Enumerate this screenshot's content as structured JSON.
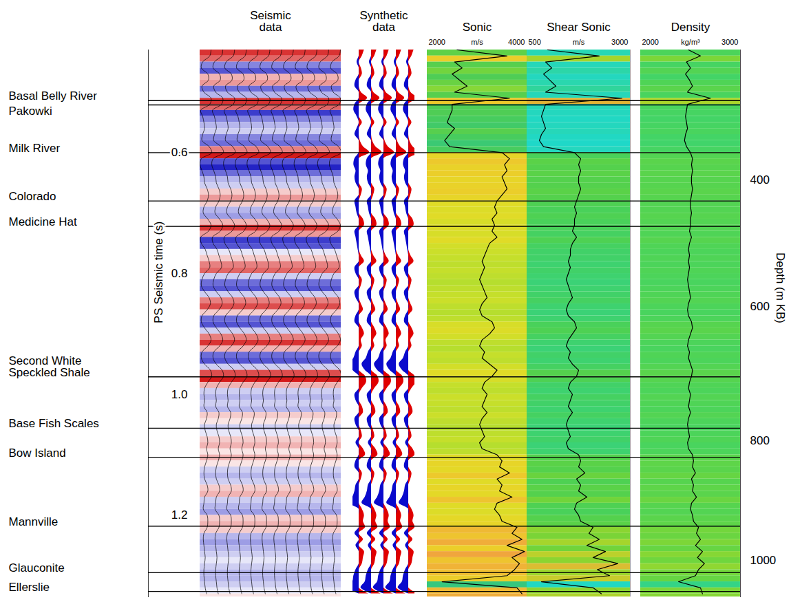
{
  "chart_data": {
    "type": "well_tie",
    "y_label": "PS Seismic time (s)",
    "ylim": [
      0.43,
      1.335
    ],
    "yticks": [
      0.6,
      0.8,
      {
        "value": 1.0,
        "label": "1.0"
      },
      1.2
    ],
    "depth_label": "Depth (m KB)",
    "depth_ticks": [
      400,
      600,
      800,
      1000
    ],
    "depth_tick_times": [
      0.645,
      0.855,
      1.077,
      1.275
    ],
    "horizons": [
      {
        "name": "Basal Belly River",
        "time": 0.514
      },
      {
        "name": "Pakowki",
        "time": 0.521
      },
      {
        "name": "Milk River",
        "time": 0.6
      },
      {
        "name": "Colorado",
        "time": 0.68
      },
      {
        "name": "Medicine Hat",
        "time": 0.722
      },
      {
        "name": "Second White Speckled Shale",
        "time": 0.971
      },
      {
        "name": "Base Fish Scales",
        "time": 1.056
      },
      {
        "name": "Bow Island",
        "time": 1.104
      },
      {
        "name": "Mannville",
        "time": 1.218
      },
      {
        "name": "Glauconite",
        "time": 1.295
      },
      {
        "name": "Ellerslie",
        "time": 1.326
      }
    ],
    "time": [
      0.43,
      0.44,
      0.45,
      0.46,
      0.47,
      0.48,
      0.49,
      0.5,
      0.51,
      0.52,
      0.53,
      0.54,
      0.55,
      0.56,
      0.57,
      0.58,
      0.59,
      0.6,
      0.61,
      0.62,
      0.63,
      0.64,
      0.65,
      0.66,
      0.67,
      0.68,
      0.69,
      0.7,
      0.71,
      0.72,
      0.73,
      0.74,
      0.75,
      0.76,
      0.77,
      0.78,
      0.79,
      0.8,
      0.81,
      0.82,
      0.83,
      0.84,
      0.85,
      0.86,
      0.87,
      0.88,
      0.89,
      0.9,
      0.91,
      0.92,
      0.93,
      0.94,
      0.95,
      0.96,
      0.97,
      0.98,
      0.99,
      1.0,
      1.01,
      1.02,
      1.03,
      1.04,
      1.05,
      1.06,
      1.07,
      1.08,
      1.09,
      1.1,
      1.11,
      1.12,
      1.13,
      1.14,
      1.15,
      1.16,
      1.17,
      1.18,
      1.19,
      1.2,
      1.21,
      1.22,
      1.23,
      1.24,
      1.25,
      1.26,
      1.27,
      1.28,
      1.29,
      1.3,
      1.31,
      1.32,
      1.33
    ],
    "panels": [
      {
        "title": "Seismic data",
        "type": "seismic",
        "amplitude_range": [
          -1,
          1
        ],
        "values": [
          0.8,
          0.6,
          -0.5,
          -0.7,
          0.3,
          0.4,
          -0.6,
          -0.3,
          0.8,
          0.6,
          -0.8,
          -0.5,
          -0.3,
          -0.2,
          -0.5,
          -0.6,
          0.5,
          0.9,
          -0.7,
          -0.9,
          -0.6,
          -0.3,
          -0.2,
          0.2,
          0.4,
          0.2,
          -0.3,
          -0.4,
          0.3,
          0.8,
          0.4,
          -0.8,
          -0.7,
          -0.1,
          0.2,
          0.5,
          0.6,
          -0.2,
          -0.6,
          -0.7,
          -0.2,
          0.5,
          0.7,
          0.2,
          -0.6,
          -0.7,
          -0.2,
          0.5,
          0.8,
          0.3,
          -0.6,
          -0.7,
          -0.2,
          0.7,
          0.9,
          0.3,
          -0.2,
          -0.3,
          -0.2,
          -0.3,
          0.2,
          0.1,
          -0.2,
          -0.1,
          0.2,
          0.3,
          0.1,
          0.3,
          0.1,
          -0.2,
          -0.3,
          -0.2,
          0.2,
          0.3,
          -0.2,
          -0.3,
          -0.4,
          0.2,
          0.3,
          0.2,
          -0.3,
          -0.4,
          -0.3,
          -0.2,
          -0.1,
          -0.2,
          -0.3,
          -0.3,
          -0.2,
          -0.1,
          0.1
        ]
      },
      {
        "title": "Synthetic data",
        "type": "synthetic",
        "amplitude_range": [
          -1,
          1
        ],
        "values": [
          0.5,
          0.3,
          -0.2,
          0.2,
          0.3,
          -0.3,
          -0.4,
          0.2,
          0.8,
          -0.4,
          -0.5,
          -0.2,
          0.3,
          -0.2,
          -0.4,
          0.1,
          0.4,
          1.0,
          -0.4,
          -0.5,
          -0.3,
          -0.4,
          -0.3,
          0.3,
          0.2,
          -0.4,
          -0.3,
          -0.2,
          0.4,
          0.5,
          -0.4,
          -0.3,
          -0.2,
          -0.1,
          0.2,
          0.5,
          -0.4,
          -0.3,
          0.3,
          0.2,
          -0.4,
          -0.3,
          0.2,
          0.4,
          -0.3,
          -0.4,
          0.3,
          0.5,
          0.2,
          0.3,
          -0.3,
          -0.5,
          -0.9,
          -0.6,
          0.6,
          0.7,
          0.3,
          -0.4,
          -0.3,
          0.3,
          0.4,
          -0.4,
          -0.3,
          0.2,
          0.3,
          -0.3,
          0.4,
          0.6,
          -0.3,
          -0.4,
          0.3,
          0.2,
          -0.3,
          -0.4,
          -0.6,
          -0.9,
          0.3,
          0.5,
          0.4,
          0.6,
          -0.4,
          0.4,
          -0.3,
          0.5,
          0.4,
          0.3,
          -0.3,
          -0.5,
          -0.6,
          -1.0,
          0.9
        ]
      },
      {
        "title": "Sonic",
        "type": "log",
        "unit": "m/s",
        "xlim": [
          2000,
          4000
        ],
        "xticks": [
          2000,
          4000
        ],
        "values": [
          2600,
          3600,
          2550,
          2700,
          2500,
          2650,
          2800,
          2550,
          3650,
          2500,
          2500,
          2450,
          2400,
          2550,
          2450,
          2350,
          2450,
          3500,
          3650,
          3550,
          3600,
          3500,
          3550,
          3600,
          3500,
          3400,
          3350,
          3400,
          3300,
          3350,
          3300,
          3400,
          3250,
          3200,
          3150,
          3100,
          3150,
          3100,
          3050,
          3100,
          3150,
          3200,
          3100,
          3050,
          3100,
          3300,
          3350,
          3250,
          3100,
          3050,
          3150,
          3100,
          3250,
          3400,
          3300,
          3150,
          3100,
          3200,
          3150,
          3100,
          3200,
          3100,
          3050,
          3100,
          3150,
          3050,
          3100,
          3400,
          3500,
          3450,
          3650,
          3400,
          3500,
          3450,
          3700,
          3400,
          3350,
          3450,
          3500,
          3800,
          3700,
          3900,
          3600,
          3950,
          3700,
          3850,
          3750,
          3600,
          2300,
          3800,
          3900
        ]
      },
      {
        "title": "Shear Sonic",
        "type": "log",
        "unit": "m/s",
        "xlim": [
          500,
          3000
        ],
        "xticks": [
          500,
          3000
        ],
        "values": [
          1000,
          2250,
          950,
          1100,
          900,
          1050,
          1200,
          950,
          2800,
          950,
          900,
          850,
          900,
          950,
          850,
          800,
          900,
          1650,
          1800,
          1750,
          1800,
          1750,
          1750,
          1800,
          1750,
          1700,
          1650,
          1700,
          1650,
          1650,
          1600,
          1700,
          1600,
          1550,
          1550,
          1500,
          1550,
          1500,
          1450,
          1500,
          1550,
          1600,
          1500,
          1450,
          1500,
          1650,
          1700,
          1600,
          1500,
          1450,
          1550,
          1500,
          1600,
          1750,
          1700,
          1550,
          1500,
          1600,
          1550,
          1500,
          1600,
          1500,
          1450,
          1500,
          1550,
          1450,
          1500,
          1750,
          1800,
          1750,
          1900,
          1700,
          1800,
          1750,
          1950,
          1700,
          1650,
          1750,
          1800,
          2100,
          2000,
          2250,
          1950,
          2400,
          2100,
          2700,
          2200,
          2500,
          850,
          2100,
          2300
        ]
      },
      {
        "title": "Density",
        "type": "log",
        "unit": "kg/m³",
        "xlim": [
          2000,
          3000
        ],
        "xticks": [
          2000,
          3000
        ],
        "values": [
          2480,
          2600,
          2460,
          2500,
          2450,
          2490,
          2520,
          2470,
          2700,
          2470,
          2460,
          2450,
          2460,
          2470,
          2450,
          2440,
          2460,
          2500,
          2520,
          2510,
          2520,
          2510,
          2510,
          2520,
          2510,
          2500,
          2500,
          2510,
          2500,
          2500,
          2490,
          2510,
          2490,
          2480,
          2490,
          2480,
          2490,
          2480,
          2470,
          2480,
          2490,
          2500,
          2480,
          2470,
          2480,
          2510,
          2520,
          2500,
          2480,
          2470,
          2490,
          2480,
          2500,
          2520,
          2510,
          2490,
          2480,
          2500,
          2490,
          2480,
          2500,
          2480,
          2470,
          2480,
          2490,
          2470,
          2480,
          2520,
          2530,
          2520,
          2550,
          2510,
          2530,
          2520,
          2560,
          2510,
          2500,
          2520,
          2530,
          2580,
          2560,
          2600,
          2550,
          2620,
          2570,
          2640,
          2580,
          2550,
          2380,
          2600,
          2620
        ]
      }
    ]
  }
}
